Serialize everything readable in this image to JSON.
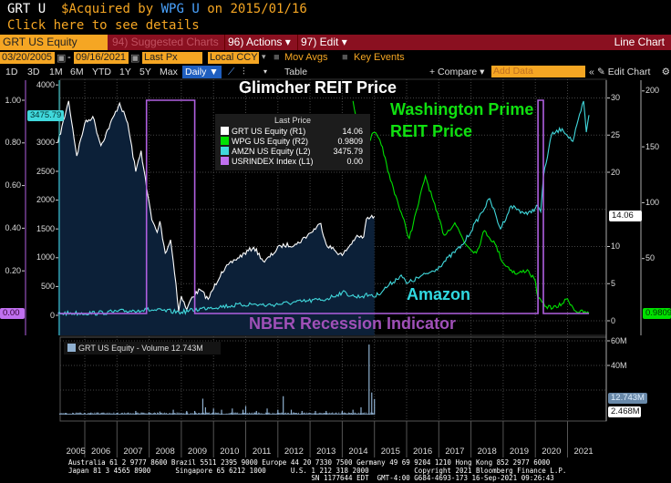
{
  "header": {
    "ticker": "GRT U",
    "currency_symbol": "$",
    "acquired_text": "Acquired by",
    "acquirer": "WPG U",
    "date_text": "on 2015/01/16",
    "details_link": "Click here to see details"
  },
  "toolbar": {
    "security": "GRT US Equity",
    "suggested": "94) Suggested Charts",
    "actions": "96) Actions ▾",
    "edit": "97) Edit ▾",
    "chart_type": "Line Chart",
    "start_date": "03/20/2005",
    "end_date": "09/16/2021",
    "date_sep": "-",
    "field": "Last Px",
    "currency": "Local CCY",
    "mov_avgs": "Mov Avgs",
    "key_events": "Key Events",
    "periods": [
      "1D",
      "3D",
      "1M",
      "6M",
      "YTD",
      "1Y",
      "5Y",
      "Max"
    ],
    "frequency": "Daily ▼",
    "table": "Table",
    "compare": "+ Compare ▾",
    "add_data_placeholder": "Add Data",
    "collapse": "«",
    "edit_chart": "✎ Edit Chart",
    "settings": "⚙"
  },
  "annotations": {
    "glimcher": "Glimcher REIT Price",
    "wpg_1": "Washington Prime",
    "wpg_2": "REIT Price",
    "amazon": "Amazon",
    "nber": "NBER Recession Indicator"
  },
  "legend": {
    "title": "Last Price",
    "items": [
      {
        "label": "GRT US Equity  (R1)",
        "value": "14.06",
        "color": "#ffffff"
      },
      {
        "label": "WPG US Equity  (R2)",
        "value": "0.9809",
        "color": "#00e000"
      },
      {
        "label": "AMZN US Equity  (L2)",
        "value": "3475.79",
        "color": "#40d8dc"
      },
      {
        "label": "USRINDEX Index  (L1)",
        "value": "0.00",
        "color": "#c070f0"
      }
    ]
  },
  "tags": {
    "amzn": "3475.79",
    "usr": "0.00",
    "grt": "14.06",
    "wpg": "0.9809",
    "volume": "12.743M",
    "volume_low": "2.468M"
  },
  "volume_legend": "GRT US Equity - Volume 12.743M",
  "footer": [
    "Australia 61 2 9777 8600 Brazil 5511 2395 9000 Europe 44 20 7330 7500 Germany 49 69 9204 1210 Hong Kong 852 2977 6000",
    "Japan 81 3 4565 8900      Singapore 65 6212 1000      U.S. 1 212 318 2000           Copyright 2021 Bloomberg Finance L.P.",
    "                                                           SN 1177644 EDT  GMT-4:00 G684-4693-173 16-Sep-2021 09:26:43"
  ],
  "chart_data": {
    "type": "line",
    "x_range": [
      "2005-03-20",
      "2021-09-16"
    ],
    "years": [
      "2005",
      "2006",
      "2007",
      "2008",
      "2009",
      "2010",
      "2011",
      "2012",
      "2013",
      "2014",
      "2015",
      "2016",
      "2017",
      "2018",
      "2019",
      "2020",
      "2021"
    ],
    "axes": {
      "L1": {
        "range": [
          0,
          1
        ],
        "ticks": [
          "0.00",
          "0.20",
          "0.40",
          "0.60",
          "0.80",
          "1.00"
        ]
      },
      "L2": {
        "range": [
          0,
          4000
        ],
        "ticks": [
          "0",
          "500",
          "1000",
          "1500",
          "2000",
          "2500",
          "3000",
          "4000"
        ]
      },
      "R1": {
        "range": [
          0,
          30
        ],
        "ticks": [
          "0",
          "5",
          "10",
          "15",
          "20",
          "25",
          "30"
        ]
      },
      "R2": {
        "range": [
          0,
          200
        ],
        "ticks": [
          "50",
          "100",
          "150",
          "200"
        ]
      },
      "VOL": {
        "range": [
          0,
          60
        ],
        "ticks": [
          "20M",
          "40M",
          "60M"
        ]
      }
    },
    "grid": true,
    "series": [
      {
        "name": "GRT US Equity",
        "axis": "R1",
        "color": "#ffffff",
        "fill": "#0c2038",
        "points": [
          [
            "2005-03",
            24.0
          ],
          [
            "2005-07",
            29.6
          ],
          [
            "2005-10",
            22.2
          ],
          [
            "2006-01",
            26.6
          ],
          [
            "2006-04",
            27.5
          ],
          [
            "2006-07",
            23.6
          ],
          [
            "2007-02",
            29.3
          ],
          [
            "2007-05",
            26.6
          ],
          [
            "2007-08",
            20.1
          ],
          [
            "2007-10",
            22.9
          ],
          [
            "2007-12",
            18.0
          ],
          [
            "2008-02",
            13.6
          ],
          [
            "2008-04",
            11.9
          ],
          [
            "2008-05",
            13.4
          ],
          [
            "2008-07",
            9.1
          ],
          [
            "2008-09",
            10.9
          ],
          [
            "2008-11",
            5.0
          ],
          [
            "2008-12",
            1.3
          ],
          [
            "2009-01",
            3.3
          ],
          [
            "2009-03",
            1.5
          ],
          [
            "2009-05",
            3.2
          ],
          [
            "2009-08",
            4.2
          ],
          [
            "2009-11",
            2.9
          ],
          [
            "2010-04",
            6.6
          ],
          [
            "2010-09",
            8.2
          ],
          [
            "2011-04",
            9.9
          ],
          [
            "2011-08",
            7.9
          ],
          [
            "2012-02",
            10.1
          ],
          [
            "2012-08",
            10.3
          ],
          [
            "2013-01",
            11.8
          ],
          [
            "2013-05",
            13.1
          ],
          [
            "2013-07",
            10.3
          ],
          [
            "2014-01",
            8.8
          ],
          [
            "2014-06",
            11.2
          ],
          [
            "2014-09",
            11.3
          ],
          [
            "2014-10",
            13.7
          ],
          [
            "2015-01",
            14.06
          ]
        ]
      },
      {
        "name": "WPG US Equity",
        "axis": "R2",
        "color": "#00e000",
        "points": [
          [
            "2014-05",
            191
          ],
          [
            "2014-07",
            169
          ],
          [
            "2014-08",
            177
          ],
          [
            "2014-10",
            152
          ],
          [
            "2015-01",
            163
          ],
          [
            "2015-04",
            150
          ],
          [
            "2015-06",
            128
          ],
          [
            "2015-09",
            106
          ],
          [
            "2016-02",
            68
          ],
          [
            "2016-05",
            95
          ],
          [
            "2016-08",
            124
          ],
          [
            "2016-12",
            93
          ],
          [
            "2017-03",
            71
          ],
          [
            "2017-07",
            82
          ],
          [
            "2017-11",
            63
          ],
          [
            "2018-03",
            55
          ],
          [
            "2018-06",
            75
          ],
          [
            "2018-10",
            63
          ],
          [
            "2019-01",
            46
          ],
          [
            "2019-06",
            36
          ],
          [
            "2019-10",
            40
          ],
          [
            "2020-01",
            30
          ],
          [
            "2020-02",
            14
          ],
          [
            "2020-05",
            7
          ],
          [
            "2020-09",
            6
          ],
          [
            "2021-01",
            14
          ],
          [
            "2021-04",
            3
          ],
          [
            "2021-09",
            0.9809
          ]
        ]
      },
      {
        "name": "AMZN US Equity",
        "axis": "L2",
        "color": "#40d8dc",
        "points": [
          [
            "2005-03",
            35
          ],
          [
            "2006-06",
            40
          ],
          [
            "2007-09",
            90
          ],
          [
            "2007-12",
            95
          ],
          [
            "2009-01",
            55
          ],
          [
            "2009-11",
            135
          ],
          [
            "2011-03",
            195
          ],
          [
            "2011-09",
            175
          ],
          [
            "2013-07",
            280
          ],
          [
            "2014-01",
            400
          ],
          [
            "2014-06",
            320
          ],
          [
            "2014-12",
            360
          ],
          [
            "2015-01",
            315
          ],
          [
            "2015-11",
            700
          ],
          [
            "2016-01",
            550
          ],
          [
            "2016-12",
            800
          ],
          [
            "2017-10",
            1230
          ],
          [
            "2018-08",
            2025
          ],
          [
            "2018-12",
            1500
          ],
          [
            "2019-04",
            1900
          ],
          [
            "2019-10",
            1750
          ],
          [
            "2020-02",
            1900
          ],
          [
            "2020-03",
            1800
          ],
          [
            "2020-04",
            2400
          ],
          [
            "2020-07",
            3130
          ],
          [
            "2020-11",
            3240
          ],
          [
            "2021-03",
            3020
          ],
          [
            "2021-07",
            3720
          ],
          [
            "2021-08",
            3180
          ],
          [
            "2021-09",
            3475.79
          ]
        ]
      },
      {
        "name": "USRINDEX Index",
        "axis": "L1",
        "color": "#b060e0",
        "points": [
          [
            "2005-03",
            0
          ],
          [
            "2007-12",
            0
          ],
          [
            "2007-12",
            1
          ],
          [
            "2009-06",
            1
          ],
          [
            "2009-06",
            0
          ],
          [
            "2020-02",
            0
          ],
          [
            "2020-02",
            1
          ],
          [
            "2020-04",
            1
          ],
          [
            "2020-04",
            0
          ],
          [
            "2021-09",
            0
          ]
        ]
      }
    ],
    "volume": {
      "name": "GRT US Equity - Volume",
      "unit": "M",
      "color": "#8fb0d0",
      "points": [
        [
          "2005-06",
          1
        ],
        [
          "2006-03",
          1.2
        ],
        [
          "2007-01",
          1.5
        ],
        [
          "2007-08",
          3
        ],
        [
          "2008-01",
          2
        ],
        [
          "2008-05",
          2.5
        ],
        [
          "2008-10",
          4
        ],
        [
          "2009-03",
          3
        ],
        [
          "2009-06",
          3
        ],
        [
          "2009-09",
          13
        ],
        [
          "2009-10",
          6
        ],
        [
          "2010-01",
          5
        ],
        [
          "2010-04",
          4
        ],
        [
          "2010-08",
          5
        ],
        [
          "2010-12",
          4
        ],
        [
          "2011-01",
          7
        ],
        [
          "2011-05",
          3
        ],
        [
          "2011-09",
          5
        ],
        [
          "2012-01",
          4
        ],
        [
          "2012-03",
          15
        ],
        [
          "2012-06",
          4
        ],
        [
          "2012-10",
          3
        ],
        [
          "2013-03",
          3
        ],
        [
          "2013-07",
          3
        ],
        [
          "2014-01",
          3
        ],
        [
          "2014-05",
          4
        ],
        [
          "2014-08",
          6
        ],
        [
          "2014-11",
          57
        ],
        [
          "2014-12",
          18
        ],
        [
          "2015-01",
          12.743
        ]
      ]
    }
  }
}
